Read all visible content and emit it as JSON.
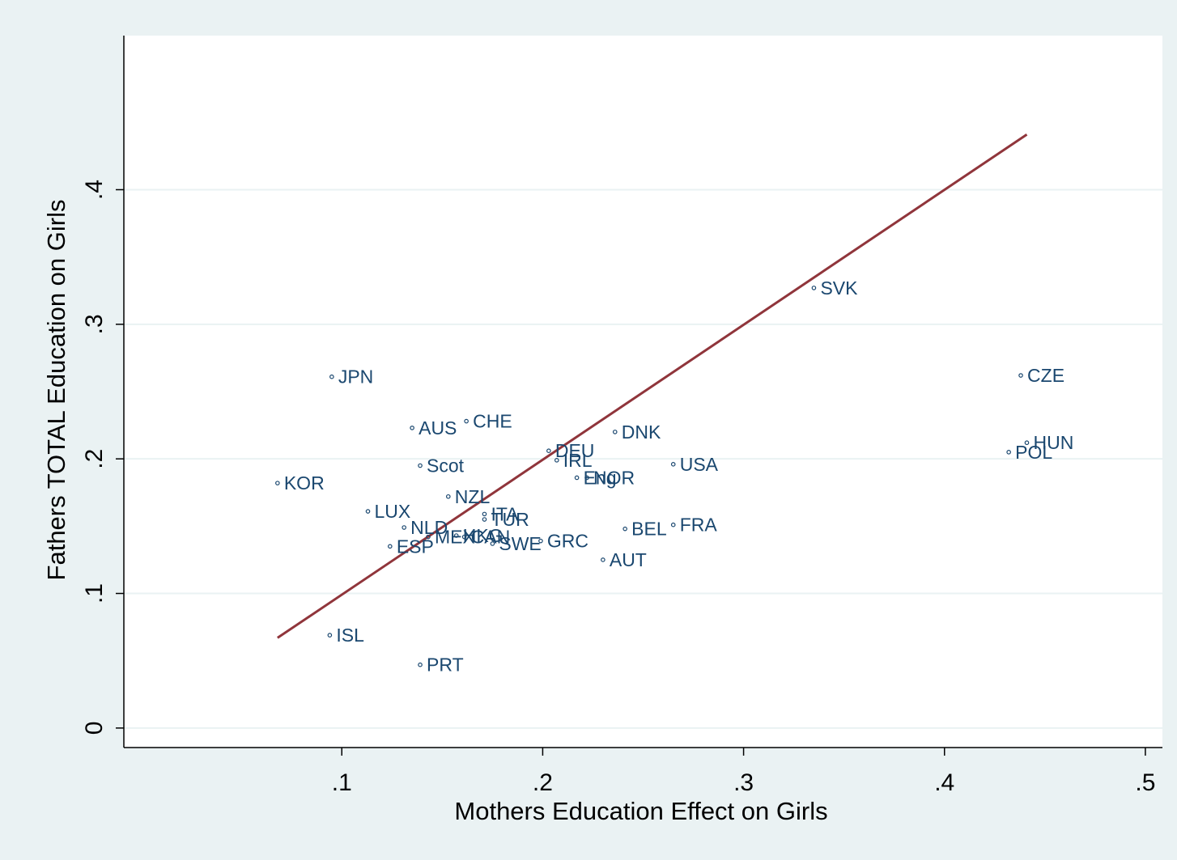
{
  "chart_data": {
    "type": "scatter",
    "title": "",
    "xlabel": "Mothers Education Effect on Girls",
    "ylabel": "Fathers TOTAL Education on Girls",
    "xlim": [
      -0.0085,
      0.5085
    ],
    "ylim": [
      -0.0145,
      0.5145
    ],
    "xticks": [
      0.1,
      0.2,
      0.3,
      0.4,
      0.5
    ],
    "xtick_labels": [
      ".1",
      ".2",
      ".3",
      ".4",
      ".5"
    ],
    "yticks": [
      0,
      0.1,
      0.2,
      0.3,
      0.4
    ],
    "ytick_labels": [
      "0",
      ".1",
      ".2",
      ".3",
      ".4"
    ],
    "grid": "horizontal",
    "colors": {
      "background": "#eaf2f3",
      "plot_area": "#ffffff",
      "gridline": "#eaf2f3",
      "marker": "#1a476f",
      "label": "#1a476f",
      "fit_line": "#90353b"
    },
    "points": [
      {
        "label": "JPN",
        "x": 0.095,
        "y": 0.261
      },
      {
        "label": "KOR",
        "x": 0.068,
        "y": 0.182
      },
      {
        "label": "AUS",
        "x": 0.135,
        "y": 0.223
      },
      {
        "label": "CHE",
        "x": 0.162,
        "y": 0.228
      },
      {
        "label": "Scot",
        "x": 0.139,
        "y": 0.195
      },
      {
        "label": "NZL",
        "x": 0.153,
        "y": 0.172
      },
      {
        "label": "LUX",
        "x": 0.113,
        "y": 0.161
      },
      {
        "label": "NLD",
        "x": 0.131,
        "y": 0.149
      },
      {
        "label": "MEX",
        "x": 0.143,
        "y": 0.142
      },
      {
        "label": "HKG",
        "x": 0.157,
        "y": 0.143
      },
      {
        "label": "CAN",
        "x": 0.161,
        "y": 0.142
      },
      {
        "label": "ESP",
        "x": 0.124,
        "y": 0.135
      },
      {
        "label": "ITA",
        "x": 0.171,
        "y": 0.159
      },
      {
        "label": "TUR",
        "x": 0.171,
        "y": 0.155
      },
      {
        "label": "SWE",
        "x": 0.175,
        "y": 0.137
      },
      {
        "label": "GRC",
        "x": 0.199,
        "y": 0.139
      },
      {
        "label": "DEU",
        "x": 0.203,
        "y": 0.206
      },
      {
        "label": "IRL",
        "x": 0.207,
        "y": 0.199
      },
      {
        "label": "Eng",
        "x": 0.217,
        "y": 0.186
      },
      {
        "label": "NOR",
        "x": 0.222,
        "y": 0.186
      },
      {
        "label": "DNK",
        "x": 0.236,
        "y": 0.22
      },
      {
        "label": "USA",
        "x": 0.265,
        "y": 0.196
      },
      {
        "label": "BEL",
        "x": 0.241,
        "y": 0.148
      },
      {
        "label": "FRA",
        "x": 0.265,
        "y": 0.151
      },
      {
        "label": "AUT",
        "x": 0.23,
        "y": 0.125
      },
      {
        "label": "ISL",
        "x": 0.094,
        "y": 0.069
      },
      {
        "label": "PRT",
        "x": 0.139,
        "y": 0.047
      },
      {
        "label": "SVK",
        "x": 0.335,
        "y": 0.327
      },
      {
        "label": "CZE",
        "x": 0.438,
        "y": 0.262
      },
      {
        "label": "HUN",
        "x": 0.441,
        "y": 0.212
      },
      {
        "label": "POL",
        "x": 0.432,
        "y": 0.205
      }
    ],
    "fit_line": {
      "x1": 0.068,
      "y1": 0.067,
      "x2": 0.441,
      "y2": 0.441
    }
  }
}
